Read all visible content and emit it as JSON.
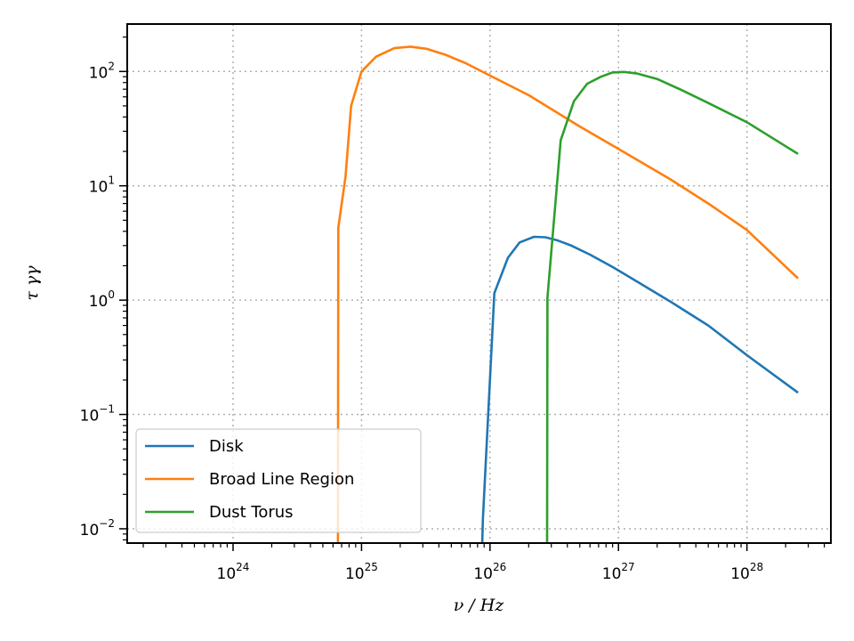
{
  "chart_data": {
    "type": "line",
    "title": "",
    "xlabel": "ν / Hz",
    "ylabel": "τ γγ",
    "x_scale": "log",
    "y_scale": "log",
    "xlim": [
      1.5e+23,
      4.5e+28
    ],
    "ylim": [
      0.0075,
      260
    ],
    "grid": true,
    "legend_position": "lower-left",
    "x_ticks": [
      {
        "value": 1e+24,
        "base": "10",
        "exp": "24"
      },
      {
        "value": 1e+25,
        "base": "10",
        "exp": "25"
      },
      {
        "value": 1e+26,
        "base": "10",
        "exp": "26"
      },
      {
        "value": 1e+27,
        "base": "10",
        "exp": "27"
      },
      {
        "value": 1e+28,
        "base": "10",
        "exp": "28"
      }
    ],
    "y_ticks": [
      {
        "value": 0.01,
        "base": "10",
        "exp": "−2"
      },
      {
        "value": 0.1,
        "base": "10",
        "exp": "−1"
      },
      {
        "value": 1,
        "base": "10",
        "exp": "0"
      },
      {
        "value": 10,
        "base": "10",
        "exp": "1"
      },
      {
        "value": 100,
        "base": "10",
        "exp": "2"
      }
    ],
    "series": [
      {
        "name": "Disk",
        "color": "#1f77b4",
        "points": [
          [
            8.7e+25,
            0.0075
          ],
          [
            8.8e+25,
            0.012
          ],
          [
            1.08e+26,
            1.15
          ],
          [
            1.38e+26,
            2.35
          ],
          [
            1.7e+26,
            3.2
          ],
          [
            2.2e+26,
            3.58
          ],
          [
            2.7e+26,
            3.55
          ],
          [
            3.3e+26,
            3.35
          ],
          [
            4.3e+26,
            3.0
          ],
          [
            6e+26,
            2.5
          ],
          [
            9e+26,
            1.95
          ],
          [
            1.4e+27,
            1.45
          ],
          [
            2.5e+27,
            0.98
          ],
          [
            5e+27,
            0.6
          ],
          [
            1e+28,
            0.33
          ],
          [
            2.5e+28,
            0.155
          ]
        ]
      },
      {
        "name": "Broad Line Region",
        "color": "#ff7f0e",
        "points": [
          [
            6.55e+24,
            0.0075
          ],
          [
            6.6e+24,
            4.3
          ],
          [
            7.5e+24,
            12
          ],
          [
            8.3e+24,
            50
          ],
          [
            1e+25,
            100
          ],
          [
            1.3e+25,
            135
          ],
          [
            1.8e+25,
            160
          ],
          [
            2.4e+25,
            165
          ],
          [
            3.2e+25,
            158
          ],
          [
            4.5e+25,
            140
          ],
          [
            6.5e+25,
            118
          ],
          [
            1e+26,
            92
          ],
          [
            2e+26,
            62
          ],
          [
            5e+26,
            33
          ],
          [
            1e+27,
            21
          ],
          [
            2.5e+27,
            11.5
          ],
          [
            5e+27,
            7
          ],
          [
            1e+28,
            4.1
          ],
          [
            2.5e+28,
            1.55
          ]
        ]
      },
      {
        "name": "Dust Torus",
        "color": "#2ca02c",
        "points": [
          [
            2.78e+26,
            0.0075
          ],
          [
            2.8e+26,
            1.05
          ],
          [
            3.55e+26,
            25
          ],
          [
            4.5e+26,
            55
          ],
          [
            5.7e+26,
            78
          ],
          [
            7.3e+26,
            90
          ],
          [
            9e+26,
            98
          ],
          [
            1.1e+27,
            99
          ],
          [
            1.4e+27,
            96
          ],
          [
            2e+27,
            86
          ],
          [
            3e+27,
            70
          ],
          [
            5e+27,
            53
          ],
          [
            1e+28,
            36
          ],
          [
            2.5e+28,
            19
          ]
        ]
      }
    ]
  }
}
